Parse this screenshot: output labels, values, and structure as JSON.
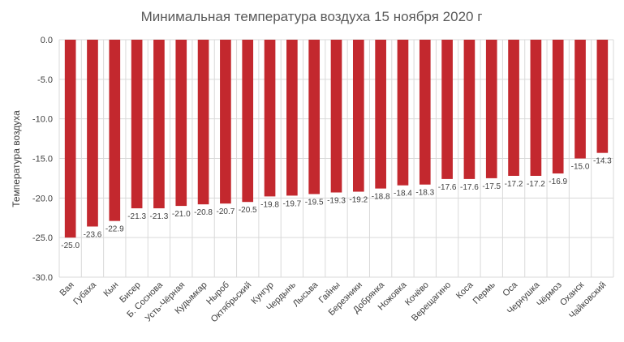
{
  "chart_data": {
    "type": "bar",
    "title": "Минимальная температура воздуха 15 ноября 2020  г",
    "xlabel": "",
    "ylabel": "Температура  воздуха",
    "ylim": [
      -30,
      0
    ],
    "yticks": [
      "0.0",
      "-5.0",
      "-10.0",
      "-15.0",
      "-20.0",
      "-25.0",
      "-30.0"
    ],
    "ytick_values": [
      0,
      -5,
      -10,
      -15,
      -20,
      -25,
      -30
    ],
    "grid": true,
    "bar_color": "#c3282e",
    "categories": [
      "Вая",
      "Губаха",
      "Кын",
      "Бисер",
      "Б. Соснова",
      "Усть-Чёрная",
      "Кудымкар",
      "Ныроб",
      "Октябрьский",
      "Кунгур",
      "Чердынь",
      "Лысьва",
      "Гайны",
      "Березники",
      "Добрянка",
      "Ножовка",
      "Кочёво",
      "Верещагино",
      "Коса",
      "Пермь",
      "Оса",
      "Чернушка",
      "Чёрмоз",
      "Оханск",
      "Чайковский"
    ],
    "values": [
      -25.0,
      -23.6,
      -22.9,
      -21.3,
      -21.3,
      -21.0,
      -20.8,
      -20.7,
      -20.5,
      -19.8,
      -19.7,
      -19.5,
      -19.3,
      -19.2,
      -18.8,
      -18.4,
      -18.3,
      -17.6,
      -17.6,
      -17.5,
      -17.2,
      -17.2,
      -16.9,
      -15.0,
      -14.3
    ],
    "labels": [
      "-25.0",
      "-23.6",
      "-22.9",
      "-21.3",
      "-21.3",
      "-21.0",
      "-20.8",
      "-20.7",
      "-20.5",
      "-19.8",
      "-19.7",
      "-19.5",
      "-19.3",
      "-19.2",
      "-18.8",
      "-18.4",
      "-18.3",
      "-17.6",
      "-17.6",
      "-17.5",
      "-17.2",
      "-17.2",
      "-16.9",
      "-15.0",
      "-14.3"
    ]
  }
}
